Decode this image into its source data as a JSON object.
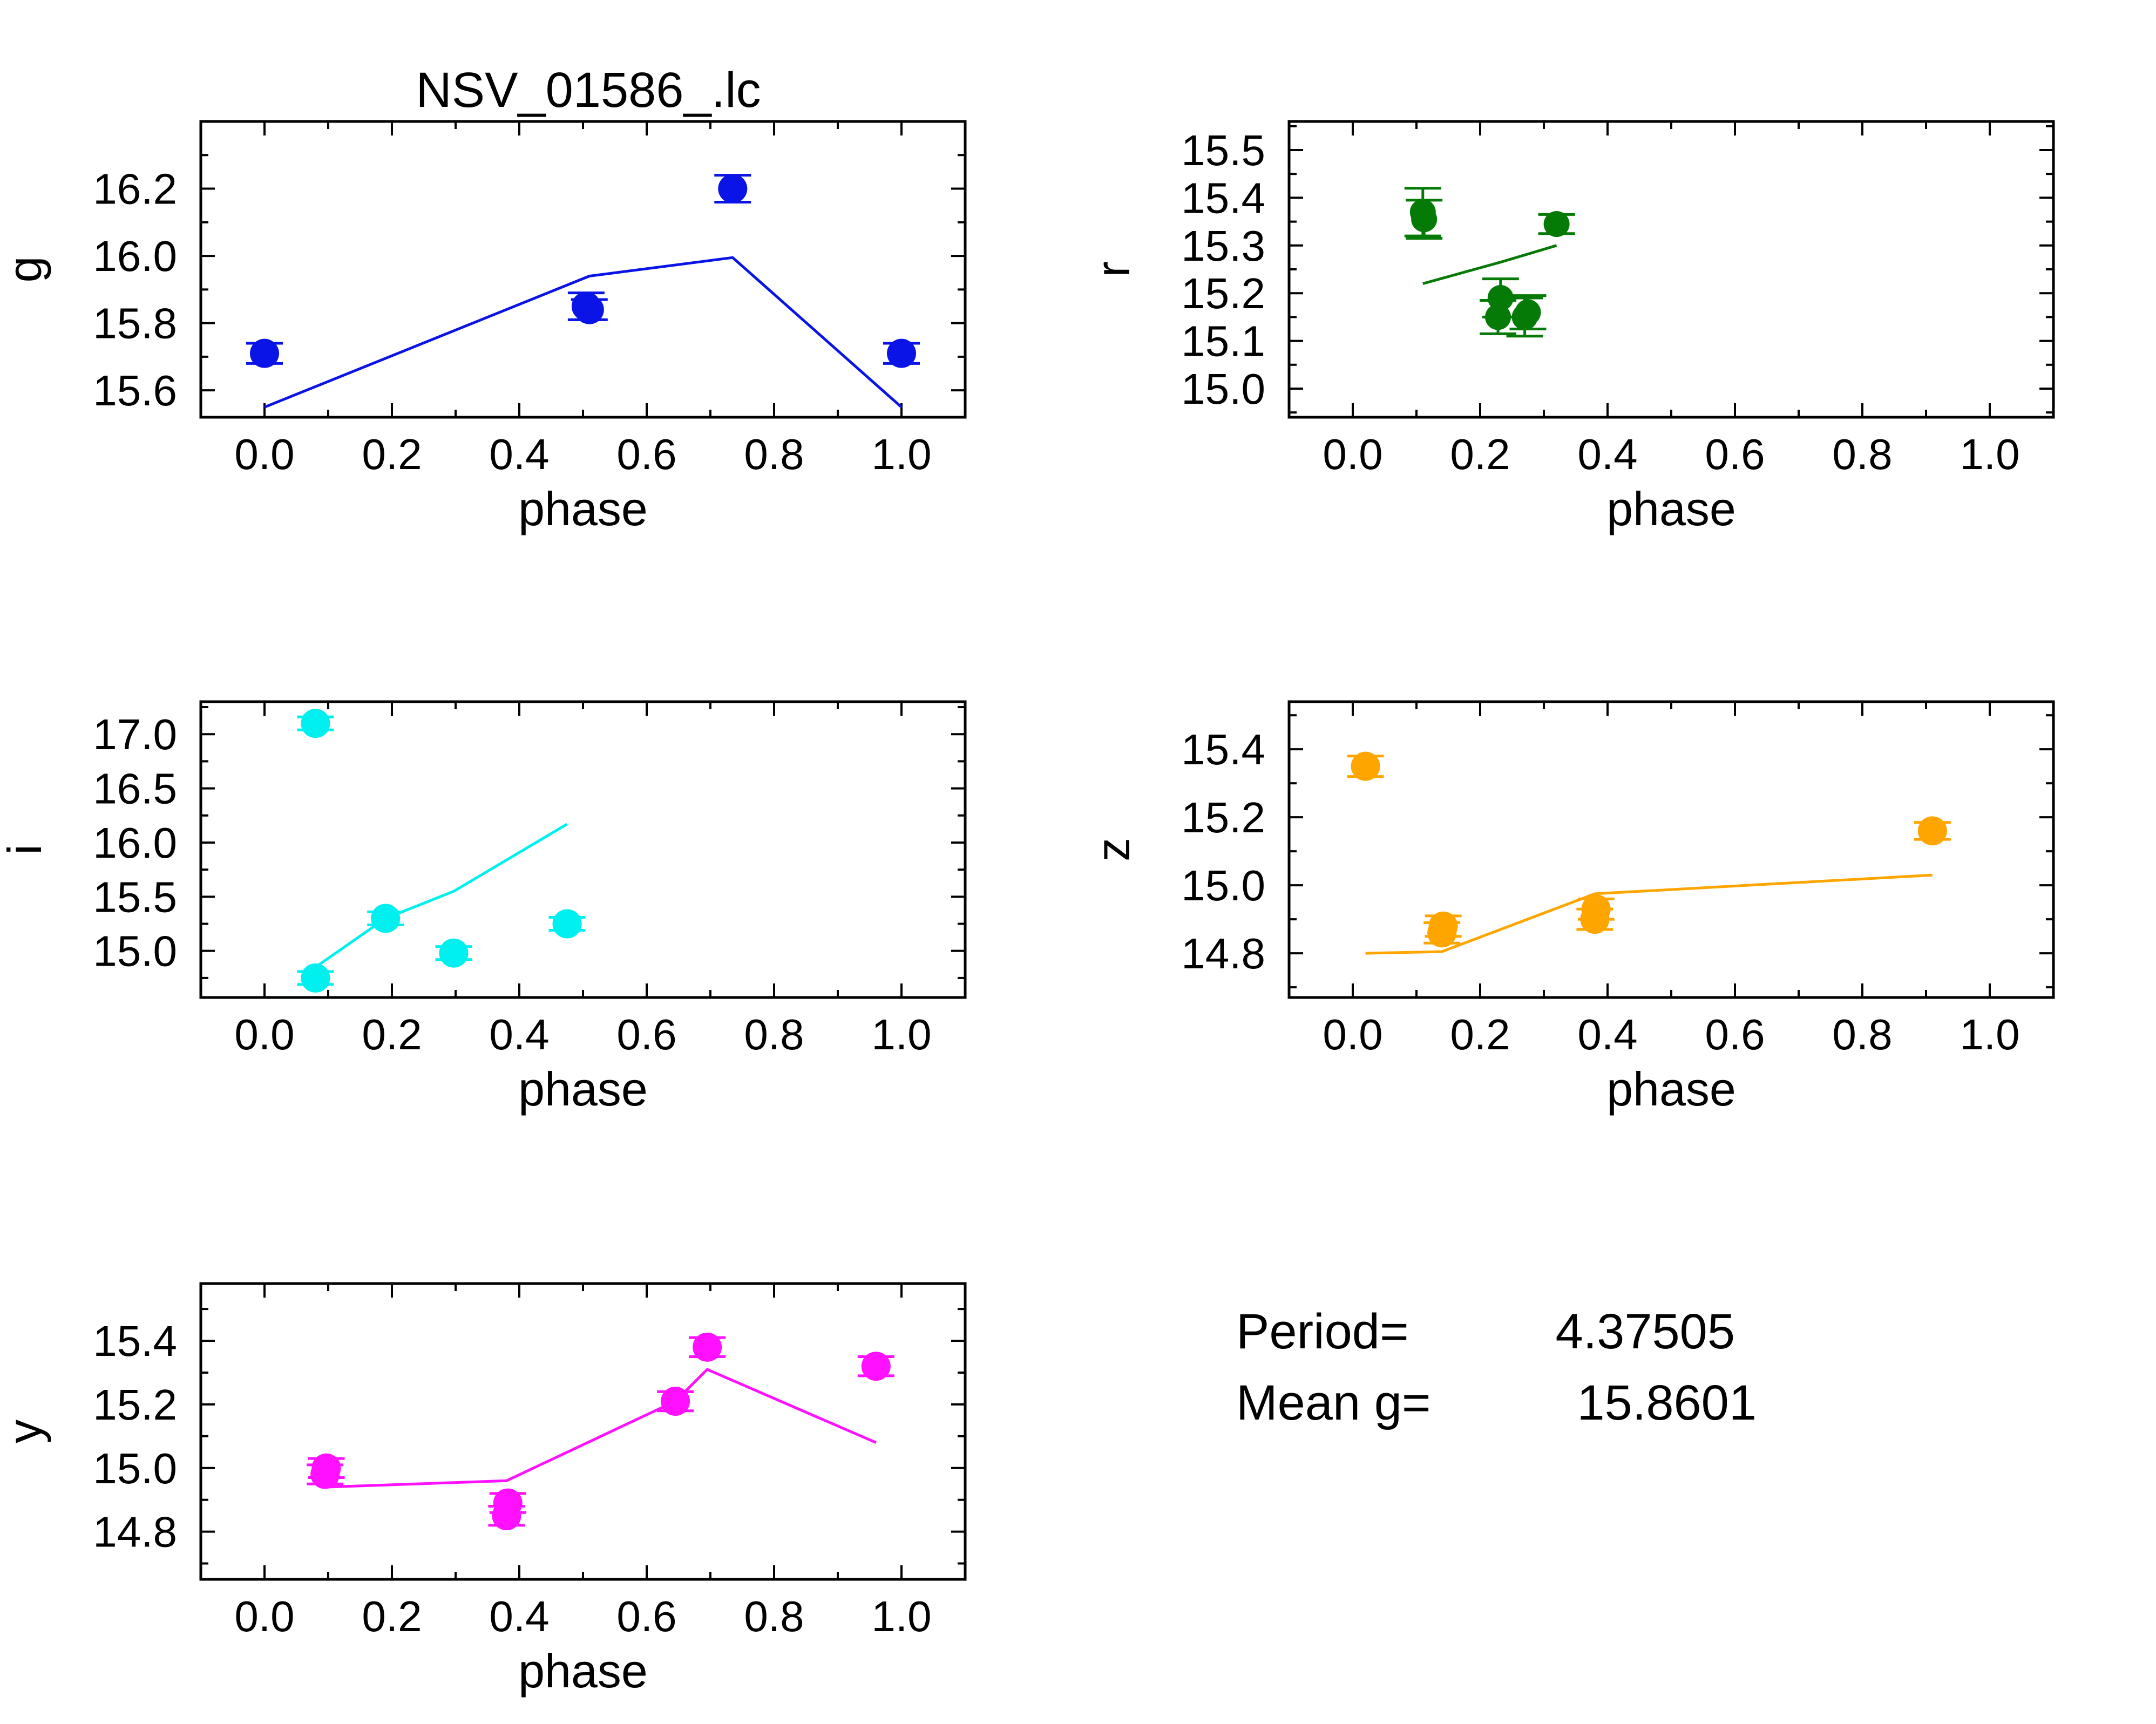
{
  "title": "NSV_01586_.lc",
  "info": {
    "period_label": "Period=",
    "period_value": "4.37505",
    "mean_label": "Mean g=",
    "mean_value": "15.8601"
  },
  "chart_data": [
    {
      "type": "scatter",
      "band": "g",
      "color": "#0a14e6",
      "xlabel": "phase",
      "ylabel": "g",
      "xlim": [
        -0.1,
        1.1
      ],
      "ylim": [
        16.4,
        15.52
      ],
      "xticks": [
        0.0,
        0.2,
        0.4,
        0.6,
        0.8,
        1.0
      ],
      "xtick_labels": [
        "0.0",
        "0.2",
        "0.4",
        "0.6",
        "0.8",
        "1.0"
      ],
      "yticks": [
        15.6,
        15.8,
        16.0,
        16.2
      ],
      "ytick_labels": [
        "15.6",
        "15.8",
        "16.0",
        "16.2"
      ],
      "points": [
        {
          "x": 0.0,
          "y": 15.71,
          "err": 0.03
        },
        {
          "x": 0.505,
          "y": 15.85,
          "err": 0.04
        },
        {
          "x": 0.51,
          "y": 15.84,
          "err": 0.03
        },
        {
          "x": 0.735,
          "y": 16.2,
          "err": 0.04
        },
        {
          "x": 1.0,
          "y": 15.71,
          "err": 0.03
        }
      ],
      "model": [
        {
          "x": 0.0,
          "y": 15.55
        },
        {
          "x": 0.51,
          "y": 15.94
        },
        {
          "x": 0.735,
          "y": 15.995
        },
        {
          "x": 1.0,
          "y": 15.55
        }
      ]
    },
    {
      "type": "scatter",
      "band": "r",
      "color": "#067a06",
      "xlabel": "phase",
      "ylabel": "r",
      "xlim": [
        -0.1,
        1.1
      ],
      "ylim": [
        15.56,
        14.94
      ],
      "xticks": [
        0.0,
        0.2,
        0.4,
        0.6,
        0.8,
        1.0
      ],
      "xtick_labels": [
        "0.0",
        "0.2",
        "0.4",
        "0.6",
        "0.8",
        "1.0"
      ],
      "yticks": [
        15.0,
        15.1,
        15.2,
        15.3,
        15.4,
        15.5
      ],
      "ytick_labels": [
        "15.0",
        "15.1",
        "15.2",
        "15.3",
        "15.4",
        "15.5"
      ],
      "points": [
        {
          "x": 0.11,
          "y": 15.37,
          "err": 0.05
        },
        {
          "x": 0.112,
          "y": 15.355,
          "err": 0.04
        },
        {
          "x": 0.228,
          "y": 15.15,
          "err": 0.035
        },
        {
          "x": 0.232,
          "y": 15.19,
          "err": 0.04
        },
        {
          "x": 0.27,
          "y": 15.15,
          "err": 0.04
        },
        {
          "x": 0.275,
          "y": 15.16,
          "err": 0.035
        },
        {
          "x": 0.32,
          "y": 15.345,
          "err": 0.02
        }
      ],
      "model": [
        {
          "x": 0.11,
          "y": 15.22
        },
        {
          "x": 0.232,
          "y": 15.265
        },
        {
          "x": 0.32,
          "y": 15.3
        }
      ]
    },
    {
      "type": "scatter",
      "band": "i",
      "color": "#00f0f0",
      "xlabel": "phase",
      "ylabel": "i",
      "xlim": [
        -0.1,
        1.1
      ],
      "ylim": [
        17.3,
        14.57
      ],
      "xticks": [
        0.0,
        0.2,
        0.4,
        0.6,
        0.8,
        1.0
      ],
      "xtick_labels": [
        "0.0",
        "0.2",
        "0.4",
        "0.6",
        "0.8",
        "1.0"
      ],
      "yticks": [
        15.0,
        15.5,
        16.0,
        16.5,
        17.0
      ],
      "ytick_labels": [
        "15.0",
        "15.5",
        "16.0",
        "16.5",
        "17.0"
      ],
      "points": [
        {
          "x": 0.08,
          "y": 14.75,
          "err": 0.06
        },
        {
          "x": 0.08,
          "y": 17.1,
          "err": 0.06
        },
        {
          "x": 0.19,
          "y": 15.3,
          "err": 0.06
        },
        {
          "x": 0.297,
          "y": 14.98,
          "err": 0.06
        },
        {
          "x": 0.475,
          "y": 15.25,
          "err": 0.06
        }
      ],
      "model": [
        {
          "x": 0.08,
          "y": 14.85
        },
        {
          "x": 0.19,
          "y": 15.3
        },
        {
          "x": 0.297,
          "y": 15.55
        },
        {
          "x": 0.475,
          "y": 16.17
        }
      ]
    },
    {
      "type": "scatter",
      "band": "z",
      "color": "#ffa500",
      "xlabel": "phase",
      "ylabel": "z",
      "xlim": [
        -0.1,
        1.1
      ],
      "ylim": [
        15.54,
        14.67
      ],
      "xticks": [
        0.0,
        0.2,
        0.4,
        0.6,
        0.8,
        1.0
      ],
      "xtick_labels": [
        "0.0",
        "0.2",
        "0.4",
        "0.6",
        "0.8",
        "1.0"
      ],
      "yticks": [
        14.8,
        15.0,
        15.2,
        15.4
      ],
      "ytick_labels": [
        "14.8",
        "15.0",
        "15.2",
        "15.4"
      ],
      "points": [
        {
          "x": 0.02,
          "y": 15.35,
          "err": 0.03
        },
        {
          "x": 0.14,
          "y": 14.86,
          "err": 0.03
        },
        {
          "x": 0.142,
          "y": 14.88,
          "err": 0.03
        },
        {
          "x": 0.38,
          "y": 14.9,
          "err": 0.03
        },
        {
          "x": 0.382,
          "y": 14.93,
          "err": 0.03
        },
        {
          "x": 0.91,
          "y": 15.16,
          "err": 0.025
        }
      ],
      "model": [
        {
          "x": 0.02,
          "y": 14.8
        },
        {
          "x": 0.14,
          "y": 14.805
        },
        {
          "x": 0.38,
          "y": 14.975
        },
        {
          "x": 0.91,
          "y": 15.03
        }
      ]
    },
    {
      "type": "scatter",
      "band": "y",
      "color": "#ff10ff",
      "xlabel": "phase",
      "ylabel": "y",
      "xlim": [
        -0.1,
        1.1
      ],
      "ylim": [
        15.58,
        14.65
      ],
      "xticks": [
        0.0,
        0.2,
        0.4,
        0.6,
        0.8,
        1.0
      ],
      "xtick_labels": [
        "0.0",
        "0.2",
        "0.4",
        "0.6",
        "0.8",
        "1.0"
      ],
      "yticks": [
        14.8,
        15.0,
        15.2,
        15.4
      ],
      "ytick_labels": [
        "14.8",
        "15.0",
        "15.2",
        "15.4"
      ],
      "points": [
        {
          "x": 0.095,
          "y": 14.98,
          "err": 0.03
        },
        {
          "x": 0.097,
          "y": 15.0,
          "err": 0.03
        },
        {
          "x": 0.38,
          "y": 14.85,
          "err": 0.03
        },
        {
          "x": 0.382,
          "y": 14.89,
          "err": 0.03
        },
        {
          "x": 0.645,
          "y": 15.21,
          "err": 0.03
        },
        {
          "x": 0.695,
          "y": 15.38,
          "err": 0.03
        },
        {
          "x": 0.96,
          "y": 15.32,
          "err": 0.03
        }
      ],
      "model": [
        {
          "x": 0.095,
          "y": 14.94
        },
        {
          "x": 0.38,
          "y": 14.96
        },
        {
          "x": 0.645,
          "y": 15.21
        },
        {
          "x": 0.695,
          "y": 15.31
        },
        {
          "x": 0.96,
          "y": 15.08
        }
      ]
    }
  ]
}
